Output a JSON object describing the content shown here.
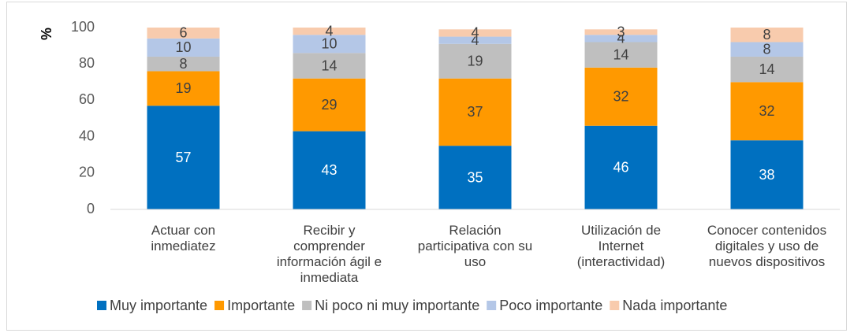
{
  "chart_data": {
    "type": "stacked_bar",
    "y_label": "%",
    "categories": [
      "Actuar con\ninmediatez",
      "Recibir y\ncomprender\ninformación ágil e\ninmediata",
      "Relación\nparticipativa con su\nuso",
      "Utilización de\nInternet\n(interactividad)",
      "Conocer contenidos\ndigitales y uso de\nnuevos dispositivos"
    ],
    "series": [
      {
        "name": "Muy importante",
        "color": "#0070c0",
        "values": [
          57,
          43,
          35,
          46,
          38
        ]
      },
      {
        "name": "Importante",
        "color": "#ff9900",
        "values": [
          19,
          29,
          37,
          32,
          32
        ]
      },
      {
        "name": "Ni poco ni muy importante",
        "color": "#bfbfbf",
        "values": [
          8,
          14,
          19,
          14,
          14
        ]
      },
      {
        "name": "Poco importante",
        "color": "#b4c7e7",
        "values": [
          10,
          10,
          4,
          4,
          8
        ]
      },
      {
        "name": "Nada importante",
        "color": "#f8cbad",
        "values": [
          6,
          4,
          4,
          3,
          8
        ]
      }
    ],
    "ylim": [
      0,
      100
    ],
    "yticks": [
      0,
      20,
      40,
      60,
      80,
      100
    ],
    "legend": "bottom"
  }
}
